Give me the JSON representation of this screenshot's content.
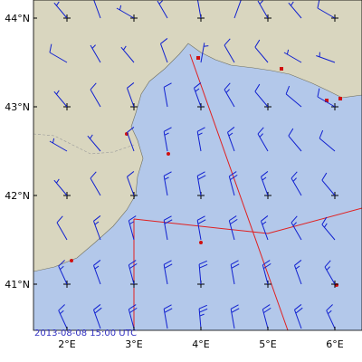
{
  "map": {
    "timestamp": "2013-08-08 15:00 UTC",
    "lat_ticks": [
      {
        "value": 44,
        "label": "44°N"
      },
      {
        "value": 43,
        "label": "43°N"
      },
      {
        "value": 42,
        "label": "42°N"
      },
      {
        "value": 41,
        "label": "41°N"
      }
    ],
    "lon_ticks": [
      {
        "value": 2,
        "label": "2°E"
      },
      {
        "value": 3,
        "label": "3°E"
      },
      {
        "value": 4,
        "label": "4°E"
      },
      {
        "value": 5,
        "label": "5°E"
      },
      {
        "value": 6,
        "label": "6°E"
      }
    ],
    "wind": {
      "lons": [
        1.5,
        2,
        2.5,
        3,
        3.5,
        4,
        4.5,
        5,
        5.5,
        6
      ],
      "lats": [
        44,
        43.5,
        43,
        42.5,
        42,
        41.5,
        41,
        40.5
      ],
      "direction": [
        [
          290,
          320,
          340,
          300,
          330,
          350,
          20,
          330,
          320,
          300
        ],
        [
          270,
          300,
          330,
          320,
          340,
          10,
          330,
          320,
          300,
          290
        ],
        [
          300,
          320,
          330,
          340,
          350,
          340,
          330,
          320,
          310,
          300
        ],
        [
          290,
          300,
          320,
          340,
          350,
          350,
          340,
          330,
          320,
          310
        ],
        [
          310,
          320,
          330,
          340,
          350,
          350,
          345,
          340,
          330,
          320
        ],
        [
          320,
          330,
          340,
          345,
          350,
          350,
          345,
          340,
          330,
          320
        ],
        [
          330,
          335,
          340,
          345,
          350,
          355,
          350,
          345,
          340,
          330
        ],
        [
          330,
          335,
          340,
          345,
          350,
          355,
          350,
          345,
          340,
          335
        ]
      ],
      "speed": [
        [
          5,
          5,
          10,
          5,
          5,
          10,
          10,
          5,
          5,
          10
        ],
        [
          5,
          10,
          5,
          5,
          10,
          5,
          10,
          10,
          5,
          5
        ],
        [
          5,
          5,
          10,
          10,
          10,
          15,
          15,
          10,
          10,
          10
        ],
        [
          5,
          5,
          5,
          10,
          15,
          15,
          15,
          15,
          10,
          10
        ],
        [
          5,
          5,
          10,
          10,
          15,
          20,
          20,
          15,
          15,
          10
        ],
        [
          10,
          10,
          15,
          15,
          20,
          20,
          20,
          15,
          15,
          15
        ],
        [
          10,
          15,
          15,
          20,
          20,
          20,
          20,
          20,
          15,
          15
        ],
        [
          15,
          15,
          20,
          20,
          20,
          25,
          20,
          20,
          20,
          15
        ]
      ]
    }
  }
}
